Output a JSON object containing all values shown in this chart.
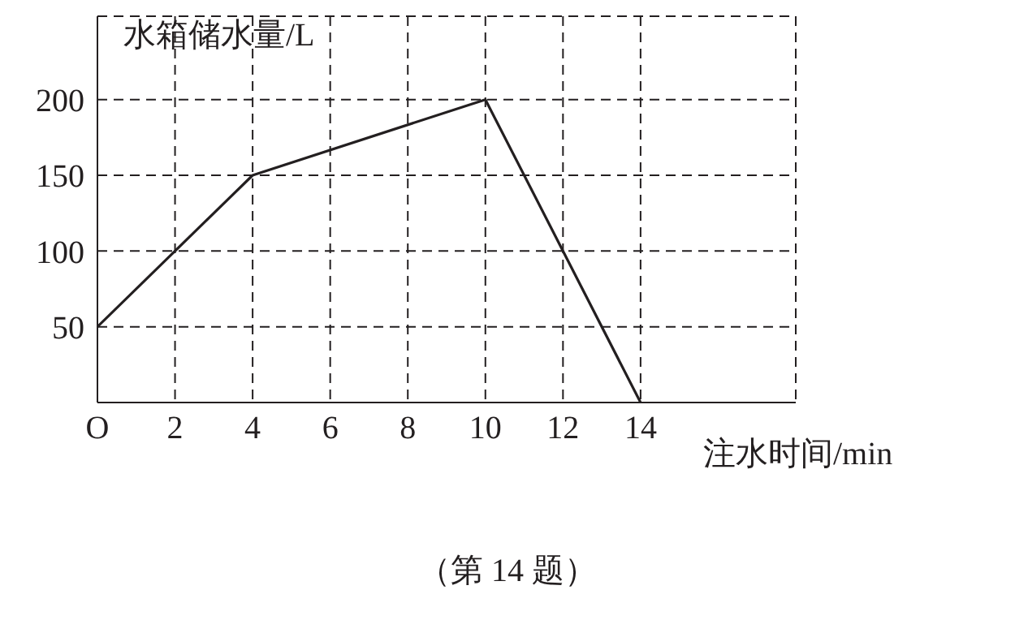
{
  "chart_data": {
    "type": "line",
    "xlabel": "注水时间/min",
    "ylabel": "水箱储水量/L",
    "annotations": [
      "（第 14 题）"
    ],
    "x": [
      0,
      4,
      10,
      14
    ],
    "series": [
      {
        "color": "#231f20",
        "values": [
          50,
          150,
          200,
          0
        ]
      }
    ],
    "xlim": [
      0,
      18
    ],
    "ylim": [
      0,
      255
    ],
    "xticks": [
      {
        "value": 0,
        "label": "O"
      },
      2,
      4,
      6,
      8,
      10,
      12,
      14
    ],
    "yticks": [
      50,
      100,
      150,
      200
    ],
    "grid": true,
    "line_style": "solid",
    "marker": "none"
  }
}
